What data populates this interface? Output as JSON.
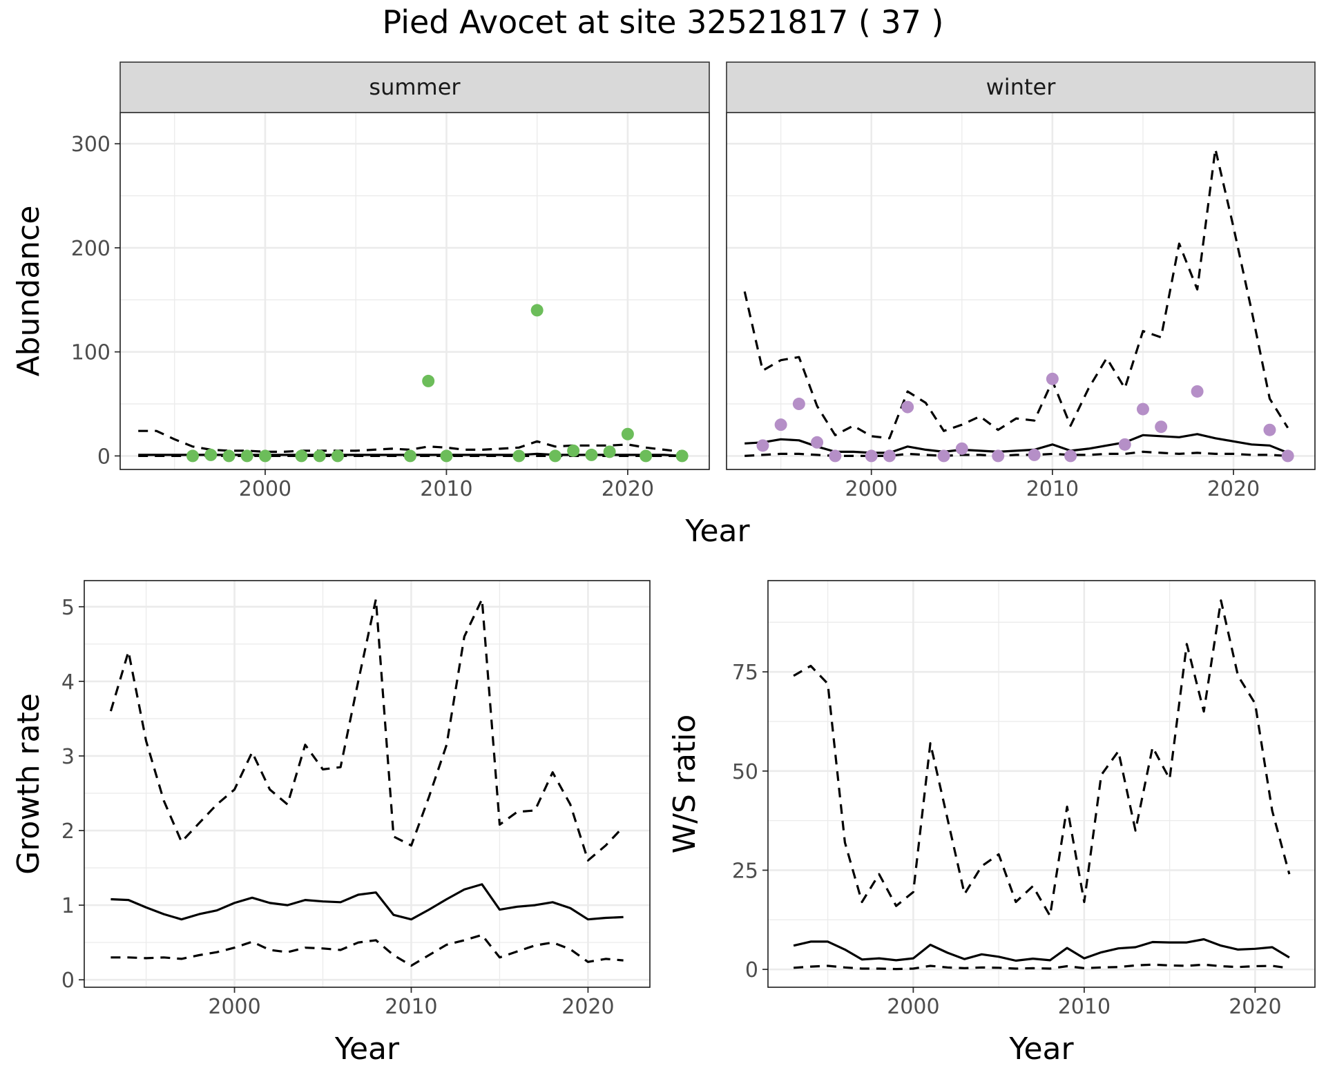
{
  "figure": {
    "title": "Pied Avocet at site 32521817 ( 37 )"
  },
  "chart_data": [
    {
      "id": "abundance",
      "type": "line",
      "facets": [
        "summer",
        "winter"
      ],
      "xlabel": "Year",
      "ylabel": "Abundance",
      "xlim": [
        1992,
        2024.5
      ],
      "ylim": [
        -13,
        330
      ],
      "xticks": [
        2000,
        2010,
        2020
      ],
      "yticks": [
        0,
        100,
        200,
        300
      ],
      "panels": [
        {
          "facet": "summer",
          "point_color": "#6cbd5a",
          "x": [
            1993,
            1994,
            1995,
            1996,
            1997,
            1998,
            1999,
            2000,
            2001,
            2002,
            2003,
            2004,
            2005,
            2006,
            2007,
            2008,
            2009,
            2010,
            2011,
            2012,
            2013,
            2014,
            2015,
            2016,
            2017,
            2018,
            2019,
            2020,
            2021,
            2022,
            2023
          ],
          "series": [
            {
              "role": "mean",
              "values": [
                1,
                1,
                1,
                1,
                1,
                1,
                1,
                1,
                1,
                1,
                1,
                1,
                1,
                1,
                1,
                1,
                1,
                1,
                1,
                1,
                1,
                1,
                2,
                1,
                1,
                1,
                1,
                1,
                1,
                1,
                0
              ]
            },
            {
              "role": "upper",
              "values": [
                24,
                24,
                16,
                9,
                6,
                5,
                5,
                4,
                4,
                5,
                5,
                5,
                5,
                6,
                7,
                6,
                9,
                8,
                6,
                6,
                7,
                8,
                14,
                9,
                10,
                10,
                10,
                11,
                8,
                6,
                4
              ]
            },
            {
              "role": "lower",
              "values": [
                0,
                0,
                0,
                0,
                0,
                0,
                0,
                0,
                0,
                0,
                0,
                0,
                0,
                0,
                0,
                0,
                0,
                0,
                0,
                0,
                0,
                0,
                0,
                0,
                0,
                0,
                0,
                0,
                0,
                0,
                0
              ]
            }
          ],
          "points": {
            "x": [
              1996,
              1997,
              1998,
              1999,
              2000,
              2002,
              2003,
              2004,
              2008,
              2009,
              2010,
              2014,
              2015,
              2016,
              2017,
              2018,
              2019,
              2020,
              2021,
              2023
            ],
            "y": [
              0,
              1,
              0,
              0,
              0,
              0,
              0,
              0,
              0,
              72,
              0,
              0,
              140,
              0,
              5,
              1,
              4,
              21,
              0,
              0
            ]
          }
        },
        {
          "facet": "winter",
          "point_color": "#b58fc7",
          "x": [
            1993,
            1994,
            1995,
            1996,
            1997,
            1998,
            1999,
            2000,
            2001,
            2002,
            2003,
            2004,
            2005,
            2006,
            2007,
            2008,
            2009,
            2010,
            2011,
            2012,
            2013,
            2014,
            2015,
            2016,
            2017,
            2018,
            2019,
            2020,
            2021,
            2022,
            2023
          ],
          "series": [
            {
              "role": "mean",
              "values": [
                12,
                13,
                16,
                15,
                9,
                4,
                4,
                3,
                3,
                9,
                6,
                4,
                6,
                5,
                4,
                5,
                6,
                11,
                5,
                7,
                10,
                13,
                20,
                19,
                18,
                21,
                17,
                14,
                11,
                10,
                3
              ]
            },
            {
              "role": "upper",
              "values": [
                158,
                82,
                92,
                95,
                48,
                20,
                29,
                19,
                17,
                62,
                51,
                24,
                30,
                38,
                25,
                36,
                34,
                72,
                29,
                65,
                94,
                65,
                120,
                114,
                204,
                160,
                295,
                220,
                140,
                55,
                27
              ]
            },
            {
              "role": "lower",
              "values": [
                0,
                1,
                2,
                2,
                1,
                0,
                0,
                0,
                0,
                2,
                1,
                0,
                1,
                1,
                0,
                1,
                1,
                2,
                1,
                1,
                2,
                2,
                4,
                3,
                2,
                3,
                2,
                2,
                1,
                1,
                0
              ]
            }
          ],
          "points": {
            "x": [
              1994,
              1995,
              1996,
              1997,
              1998,
              2000,
              2001,
              2002,
              2004,
              2005,
              2007,
              2009,
              2010,
              2011,
              2014,
              2015,
              2016,
              2018,
              2022,
              2023
            ],
            "y": [
              10,
              30,
              50,
              13,
              0,
              0,
              0,
              47,
              0,
              7,
              0,
              1,
              74,
              0,
              11,
              45,
              28,
              62,
              25,
              0
            ]
          }
        }
      ]
    },
    {
      "id": "growth",
      "type": "line",
      "xlabel": "Year",
      "ylabel": "Growth rate",
      "xlim": [
        1991.5,
        2023.5
      ],
      "ylim": [
        -0.1,
        5.35
      ],
      "xticks": [
        2000,
        2010,
        2020
      ],
      "yticks": [
        0,
        1,
        2,
        3,
        4,
        5
      ],
      "x": [
        1993,
        1994,
        1995,
        1996,
        1997,
        1998,
        1999,
        2000,
        2001,
        2002,
        2003,
        2004,
        2005,
        2006,
        2007,
        2008,
        2009,
        2010,
        2011,
        2012,
        2013,
        2014,
        2015,
        2016,
        2017,
        2018,
        2019,
        2020,
        2021,
        2022
      ],
      "series": [
        {
          "role": "mean",
          "values": [
            1.08,
            1.07,
            0.97,
            0.88,
            0.81,
            0.88,
            0.93,
            1.03,
            1.1,
            1.03,
            1.0,
            1.07,
            1.05,
            1.04,
            1.14,
            1.17,
            0.87,
            0.81,
            0.94,
            1.08,
            1.21,
            1.28,
            0.94,
            0.98,
            1.0,
            1.04,
            0.96,
            0.81,
            0.83,
            0.84
          ]
        },
        {
          "role": "upper",
          "values": [
            3.6,
            4.4,
            3.2,
            2.4,
            1.85,
            2.1,
            2.35,
            2.55,
            3.05,
            2.55,
            2.35,
            3.15,
            2.82,
            2.85,
            4.0,
            5.1,
            1.92,
            1.8,
            2.45,
            3.15,
            4.6,
            5.1,
            2.08,
            2.25,
            2.27,
            2.78,
            2.35,
            1.6,
            1.8,
            2.05
          ]
        },
        {
          "role": "lower",
          "values": [
            0.3,
            0.3,
            0.29,
            0.3,
            0.28,
            0.33,
            0.37,
            0.43,
            0.51,
            0.4,
            0.37,
            0.43,
            0.42,
            0.4,
            0.5,
            0.53,
            0.33,
            0.19,
            0.33,
            0.47,
            0.53,
            0.6,
            0.3,
            0.38,
            0.46,
            0.5,
            0.41,
            0.24,
            0.28,
            0.26
          ]
        }
      ]
    },
    {
      "id": "ws_ratio",
      "type": "line",
      "xlabel": "Year",
      "ylabel": "W/S ratio",
      "xlim": [
        1991.5,
        2023.5
      ],
      "ylim": [
        -4.5,
        98
      ],
      "xticks": [
        2000,
        2010,
        2020
      ],
      "yticks": [
        0,
        25,
        50,
        75
      ],
      "x": [
        1993,
        1994,
        1995,
        1996,
        1997,
        1998,
        1999,
        2000,
        2001,
        2002,
        2003,
        2004,
        2005,
        2006,
        2007,
        2008,
        2009,
        2010,
        2011,
        2012,
        2013,
        2014,
        2015,
        2016,
        2017,
        2018,
        2019,
        2020,
        2021,
        2022
      ],
      "series": [
        {
          "role": "mean",
          "values": [
            6,
            7,
            7,
            5,
            2.5,
            2.8,
            2.3,
            2.8,
            6.2,
            4.2,
            2.6,
            3.8,
            3.2,
            2.2,
            2.7,
            2.3,
            5.4,
            2.8,
            4.3,
            5.3,
            5.6,
            6.9,
            6.8,
            6.8,
            7.6,
            6.0,
            5.0,
            5.2,
            5.6,
            3.0
          ]
        },
        {
          "role": "upper",
          "values": [
            74,
            76.5,
            72,
            32,
            17,
            24,
            16,
            19.5,
            57,
            38,
            19,
            26,
            29,
            17,
            21,
            13.5,
            41,
            17,
            49,
            55,
            35,
            56,
            48,
            82,
            65,
            93,
            74,
            67,
            40,
            24
          ]
        },
        {
          "role": "lower",
          "values": [
            0.4,
            0.7,
            0.9,
            0.5,
            0.2,
            0.2,
            0.1,
            0.2,
            0.9,
            0.5,
            0.3,
            0.5,
            0.4,
            0.2,
            0.3,
            0.2,
            0.8,
            0.3,
            0.5,
            0.6,
            1.0,
            1.2,
            1.0,
            0.9,
            1.2,
            0.8,
            0.6,
            0.8,
            0.9,
            0.3
          ]
        }
      ]
    }
  ]
}
